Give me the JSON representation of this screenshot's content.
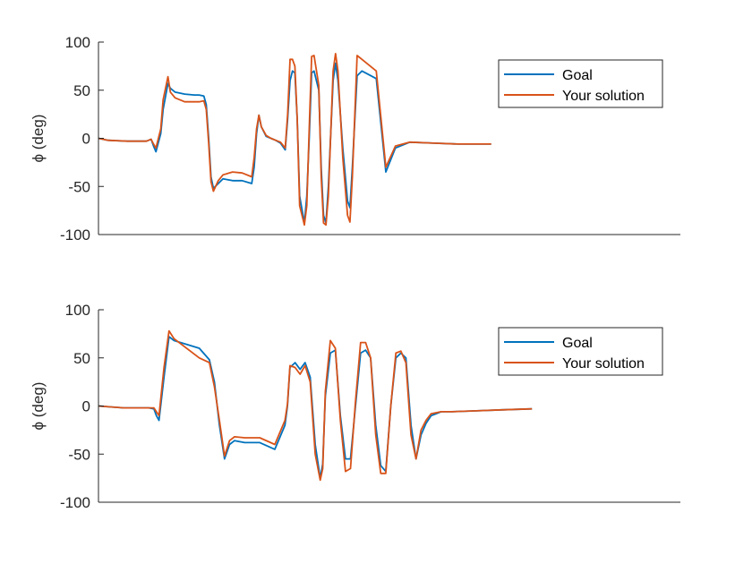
{
  "chart_data": [
    {
      "type": "line",
      "ylabel": "ϕ (deg)",
      "ylim": [
        -100,
        100
      ],
      "xlim": [
        0,
        1
      ],
      "yticks": [
        "100",
        "50",
        "0",
        "-50",
        "-100"
      ],
      "x_axis_visible": true,
      "x_tick_labels": false,
      "grid": false,
      "legend": "top-right",
      "series": [
        {
          "name": "Goal",
          "color": "#0072BD",
          "x": [
            0,
            0.02,
            0.06,
            0.1,
            0.11,
            0.115,
            0.12,
            0.13,
            0.135,
            0.145,
            0.15,
            0.16,
            0.18,
            0.2,
            0.21,
            0.22,
            0.225,
            0.23,
            0.235,
            0.24,
            0.25,
            0.26,
            0.28,
            0.3,
            0.32,
            0.325,
            0.33,
            0.335,
            0.34,
            0.35,
            0.36,
            0.37,
            0.38,
            0.39,
            0.395,
            0.4,
            0.405,
            0.41,
            0.415,
            0.42,
            0.43,
            0.435,
            0.44,
            0.445,
            0.45,
            0.46,
            0.465,
            0.47,
            0.475,
            0.48,
            0.49,
            0.495,
            0.5,
            0.51,
            0.52,
            0.525,
            0.53,
            0.54,
            0.55,
            0.58,
            0.6,
            0.62,
            0.65,
            0.7,
            0.75,
            0.82
          ],
          "values": [
            0,
            -2,
            -3,
            -3,
            -1,
            -8,
            -14,
            5,
            30,
            57,
            52,
            48,
            46,
            45,
            45,
            44,
            35,
            0,
            -40,
            -52,
            -47,
            -42,
            -44,
            -44,
            -47,
            -30,
            5,
            24,
            12,
            2,
            0,
            -2,
            -5,
            -12,
            20,
            60,
            70,
            68,
            20,
            -60,
            -88,
            -60,
            0,
            68,
            70,
            50,
            -30,
            -80,
            -88,
            -50,
            60,
            78,
            60,
            -10,
            -65,
            -72,
            -30,
            65,
            70,
            62,
            -35,
            -10,
            -4,
            -5,
            -6,
            -6
          ]
        },
        {
          "name": "Your solution",
          "color": "#D95319",
          "x": [
            0,
            0.02,
            0.06,
            0.1,
            0.11,
            0.115,
            0.12,
            0.13,
            0.135,
            0.145,
            0.15,
            0.16,
            0.18,
            0.2,
            0.21,
            0.22,
            0.225,
            0.23,
            0.235,
            0.24,
            0.25,
            0.26,
            0.28,
            0.3,
            0.32,
            0.325,
            0.33,
            0.335,
            0.34,
            0.35,
            0.36,
            0.37,
            0.38,
            0.39,
            0.395,
            0.4,
            0.405,
            0.41,
            0.415,
            0.42,
            0.43,
            0.435,
            0.44,
            0.445,
            0.45,
            0.46,
            0.465,
            0.47,
            0.475,
            0.48,
            0.49,
            0.495,
            0.5,
            0.51,
            0.52,
            0.525,
            0.53,
            0.54,
            0.55,
            0.58,
            0.6,
            0.62,
            0.65,
            0.7,
            0.75,
            0.82
          ],
          "values": [
            0,
            -2,
            -3,
            -3,
            -1,
            -6,
            -10,
            10,
            40,
            64,
            48,
            42,
            38,
            38,
            38,
            39,
            30,
            -5,
            -45,
            -55,
            -44,
            -38,
            -35,
            -36,
            -40,
            -20,
            10,
            24,
            12,
            3,
            0,
            -2,
            -4,
            -10,
            25,
            82,
            82,
            75,
            20,
            -70,
            -90,
            -70,
            10,
            85,
            86,
            55,
            -40,
            -88,
            -90,
            -60,
            70,
            88,
            70,
            -20,
            -80,
            -87,
            -40,
            86,
            82,
            70,
            -30,
            -8,
            -4,
            -5,
            -6,
            -6
          ]
        }
      ]
    },
    {
      "type": "line",
      "ylabel": "ϕ (deg)",
      "ylim": [
        -100,
        100
      ],
      "xlim": [
        0,
        1
      ],
      "yticks": [
        "100",
        "50",
        "0",
        "-50",
        "-100"
      ],
      "x_axis_visible": true,
      "x_tick_labels": false,
      "grid": false,
      "legend": "top-right",
      "series": [
        {
          "name": "Goal",
          "color": "#0072BD",
          "x": [
            0,
            0.05,
            0.1,
            0.11,
            0.115,
            0.12,
            0.13,
            0.14,
            0.15,
            0.2,
            0.22,
            0.23,
            0.24,
            0.25,
            0.26,
            0.27,
            0.29,
            0.32,
            0.35,
            0.37,
            0.375,
            0.38,
            0.39,
            0.4,
            0.41,
            0.42,
            0.43,
            0.44,
            0.445,
            0.45,
            0.46,
            0.47,
            0.48,
            0.49,
            0.5,
            0.51,
            0.52,
            0.53,
            0.54,
            0.55,
            0.56,
            0.57,
            0.58,
            0.59,
            0.6,
            0.61,
            0.62,
            0.63,
            0.64,
            0.65,
            0.66,
            0.67,
            0.68,
            0.7,
            0.75,
            0.8,
            0.86
          ],
          "values": [
            0,
            -2,
            -2,
            -3,
            -10,
            -15,
            30,
            72,
            68,
            60,
            48,
            25,
            -20,
            -55,
            -40,
            -36,
            -38,
            -38,
            -45,
            -20,
            0,
            40,
            45,
            38,
            45,
            30,
            -40,
            -75,
            -60,
            10,
            55,
            58,
            -10,
            -55,
            -55,
            0,
            55,
            58,
            50,
            -20,
            -62,
            -68,
            0,
            50,
            55,
            50,
            -20,
            -55,
            -30,
            -18,
            -10,
            -8,
            -6,
            -6,
            -5,
            -4,
            -3
          ]
        },
        {
          "name": "Your solution",
          "color": "#D95319",
          "x": [
            0,
            0.05,
            0.1,
            0.11,
            0.115,
            0.12,
            0.13,
            0.14,
            0.15,
            0.2,
            0.22,
            0.23,
            0.24,
            0.25,
            0.26,
            0.27,
            0.29,
            0.32,
            0.35,
            0.37,
            0.375,
            0.38,
            0.39,
            0.4,
            0.41,
            0.42,
            0.43,
            0.44,
            0.445,
            0.45,
            0.46,
            0.47,
            0.48,
            0.49,
            0.5,
            0.51,
            0.52,
            0.53,
            0.54,
            0.55,
            0.56,
            0.57,
            0.58,
            0.59,
            0.6,
            0.61,
            0.62,
            0.63,
            0.64,
            0.65,
            0.66,
            0.67,
            0.68,
            0.7,
            0.75,
            0.8,
            0.86
          ],
          "values": [
            0,
            -2,
            -2,
            -2,
            -6,
            -10,
            40,
            78,
            70,
            50,
            45,
            20,
            -15,
            -52,
            -36,
            -32,
            -33,
            -33,
            -40,
            -15,
            2,
            42,
            40,
            33,
            42,
            25,
            -50,
            -77,
            -65,
            15,
            68,
            60,
            -15,
            -68,
            -65,
            5,
            66,
            66,
            50,
            -30,
            -70,
            -70,
            0,
            55,
            57,
            45,
            -30,
            -55,
            -25,
            -15,
            -8,
            -7,
            -6,
            -6,
            -5,
            -4,
            -3
          ]
        }
      ]
    }
  ]
}
